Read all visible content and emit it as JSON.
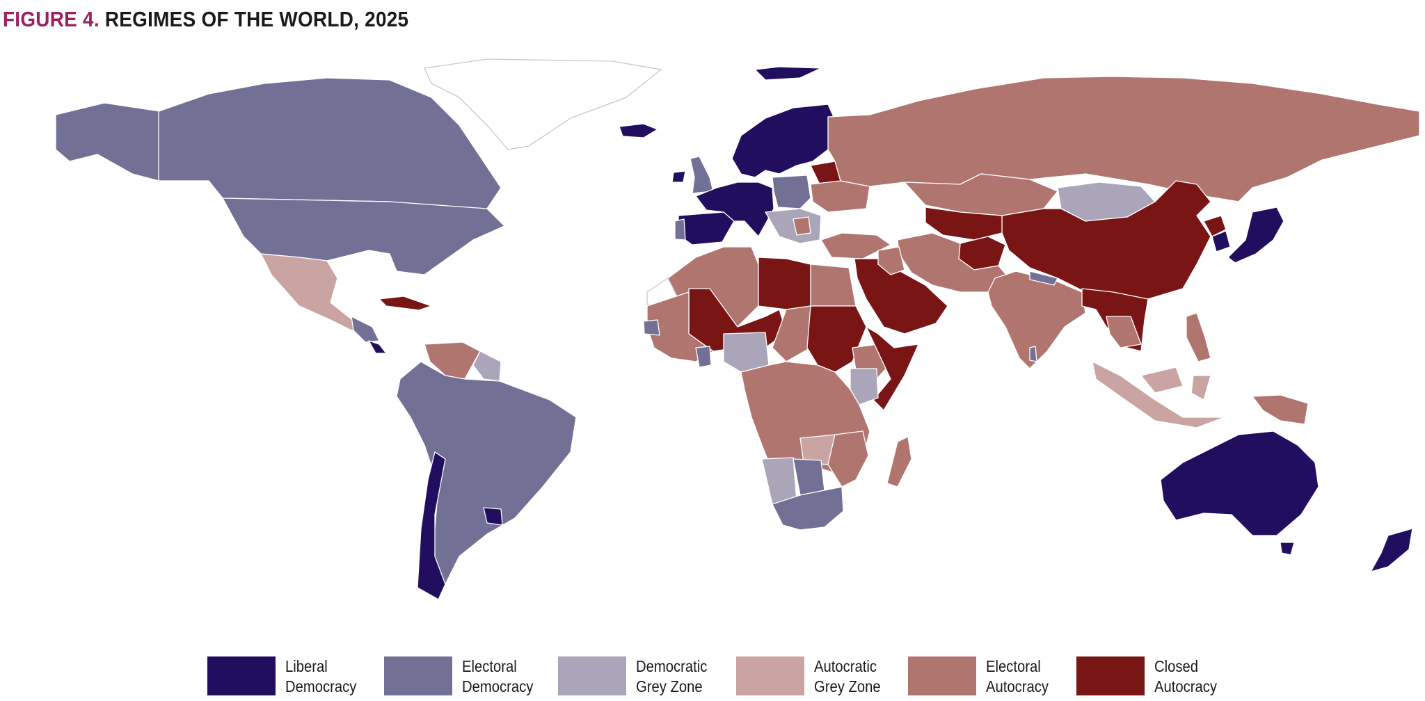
{
  "title": {
    "figure_label": "FIGURE 4.",
    "text": "REGIMES OF THE WORLD, 2025"
  },
  "colors": {
    "liberal_democracy": "#220e5f",
    "electoral_democracy": "#737096",
    "democratic_grey_zone": "#aaa5b8",
    "autocratic_grey_zone": "#c9a4a3",
    "electoral_autocracy": "#b17570",
    "closed_autocracy": "#7a1515",
    "no_data": "#ffffff"
  },
  "legend": [
    {
      "key": "liberal_democracy",
      "label": "Liberal\nDemocracy"
    },
    {
      "key": "electoral_democracy",
      "label": "Electoral\nDemocracy"
    },
    {
      "key": "democratic_grey_zone",
      "label": "Democratic\nGrey Zone"
    },
    {
      "key": "autocratic_grey_zone",
      "label": "Autocratic\nGrey Zone"
    },
    {
      "key": "electoral_autocracy",
      "label": "Electoral\nAutocracy"
    },
    {
      "key": "closed_autocracy",
      "label": "Closed\nAutocracy"
    }
  ],
  "regions": [
    {
      "id": "alaska",
      "category": "electoral_democracy"
    },
    {
      "id": "canada",
      "category": "electoral_democracy"
    },
    {
      "id": "greenland",
      "category": "no_data"
    },
    {
      "id": "usa",
      "category": "electoral_democracy"
    },
    {
      "id": "mexico",
      "category": "autocratic_grey_zone"
    },
    {
      "id": "central-america",
      "category": "electoral_democracy"
    },
    {
      "id": "costa-rica",
      "category": "liberal_democracy"
    },
    {
      "id": "cuba",
      "category": "closed_autocracy"
    },
    {
      "id": "venezuela",
      "category": "electoral_autocracy"
    },
    {
      "id": "guyana-suriname",
      "category": "democratic_grey_zone"
    },
    {
      "id": "south-america",
      "category": "electoral_democracy"
    },
    {
      "id": "chile",
      "category": "liberal_democracy"
    },
    {
      "id": "uruguay",
      "category": "liberal_democracy"
    },
    {
      "id": "iceland",
      "category": "liberal_democracy"
    },
    {
      "id": "ireland",
      "category": "liberal_democracy"
    },
    {
      "id": "uk",
      "category": "electoral_democracy"
    },
    {
      "id": "iberia",
      "category": "liberal_democracy"
    },
    {
      "id": "portugal",
      "category": "electoral_democracy"
    },
    {
      "id": "western-europe",
      "category": "liberal_democracy"
    },
    {
      "id": "scandinavia",
      "category": "liberal_democracy"
    },
    {
      "id": "svalbard",
      "category": "liberal_democracy"
    },
    {
      "id": "poland-hungary",
      "category": "electoral_democracy"
    },
    {
      "id": "balkans",
      "category": "democratic_grey_zone"
    },
    {
      "id": "serbia",
      "category": "electoral_autocracy"
    },
    {
      "id": "belarus",
      "category": "closed_autocracy"
    },
    {
      "id": "ukraine",
      "category": "electoral_autocracy"
    },
    {
      "id": "turkey",
      "category": "electoral_autocracy"
    },
    {
      "id": "russia",
      "category": "electoral_autocracy"
    },
    {
      "id": "kazakhstan",
      "category": "electoral_autocracy"
    },
    {
      "id": "mongolia",
      "category": "democratic_grey_zone"
    },
    {
      "id": "china",
      "category": "closed_autocracy"
    },
    {
      "id": "korea-nk",
      "category": "closed_autocracy"
    },
    {
      "id": "south-korea",
      "category": "liberal_democracy"
    },
    {
      "id": "japan",
      "category": "liberal_democracy"
    },
    {
      "id": "central-asia",
      "category": "closed_autocracy"
    },
    {
      "id": "afghanistan",
      "category": "closed_autocracy"
    },
    {
      "id": "iran-pakistan",
      "category": "electoral_autocracy"
    },
    {
      "id": "arabia",
      "category": "closed_autocracy"
    },
    {
      "id": "iraq",
      "category": "electoral_autocracy"
    },
    {
      "id": "india",
      "category": "electoral_autocracy"
    },
    {
      "id": "sri-lanka",
      "category": "electoral_democracy"
    },
    {
      "id": "nepal",
      "category": "electoral_democracy"
    },
    {
      "id": "myanmar-mainland",
      "category": "closed_autocracy"
    },
    {
      "id": "thailand-cambodia",
      "category": "electoral_autocracy"
    },
    {
      "id": "malaysia-indonesia",
      "category": "autocratic_grey_zone"
    },
    {
      "id": "philippines",
      "category": "electoral_autocracy"
    },
    {
      "id": "papua",
      "category": "electoral_autocracy"
    },
    {
      "id": "australia",
      "category": "liberal_democracy"
    },
    {
      "id": "tasmania",
      "category": "liberal_democracy"
    },
    {
      "id": "new-zealand",
      "category": "liberal_democracy"
    },
    {
      "id": "morocco-algeria",
      "category": "electoral_autocracy"
    },
    {
      "id": "west-sahara",
      "category": "no_data"
    },
    {
      "id": "libya",
      "category": "closed_autocracy"
    },
    {
      "id": "egypt",
      "category": "electoral_autocracy"
    },
    {
      "id": "mali-niger",
      "category": "closed_autocracy"
    },
    {
      "id": "chad",
      "category": "electoral_autocracy"
    },
    {
      "id": "sudan",
      "category": "closed_autocracy"
    },
    {
      "id": "west-africa",
      "category": "electoral_autocracy"
    },
    {
      "id": "senegal-ghana",
      "category": "electoral_democracy"
    },
    {
      "id": "nigeria",
      "category": "democratic_grey_zone"
    },
    {
      "id": "ethiopia",
      "category": "electoral_autocracy"
    },
    {
      "id": "somalia-eritrea",
      "category": "closed_autocracy"
    },
    {
      "id": "kenya",
      "category": "democratic_grey_zone"
    },
    {
      "id": "central-africa",
      "category": "electoral_autocracy"
    },
    {
      "id": "zambia",
      "category": "autocratic_grey_zone"
    },
    {
      "id": "namibia",
      "category": "democratic_grey_zone"
    },
    {
      "id": "botswana",
      "category": "electoral_democracy"
    },
    {
      "id": "south-africa",
      "category": "electoral_democracy"
    },
    {
      "id": "mozambique",
      "category": "electoral_autocracy"
    },
    {
      "id": "madagascar",
      "category": "electoral_autocracy"
    }
  ]
}
